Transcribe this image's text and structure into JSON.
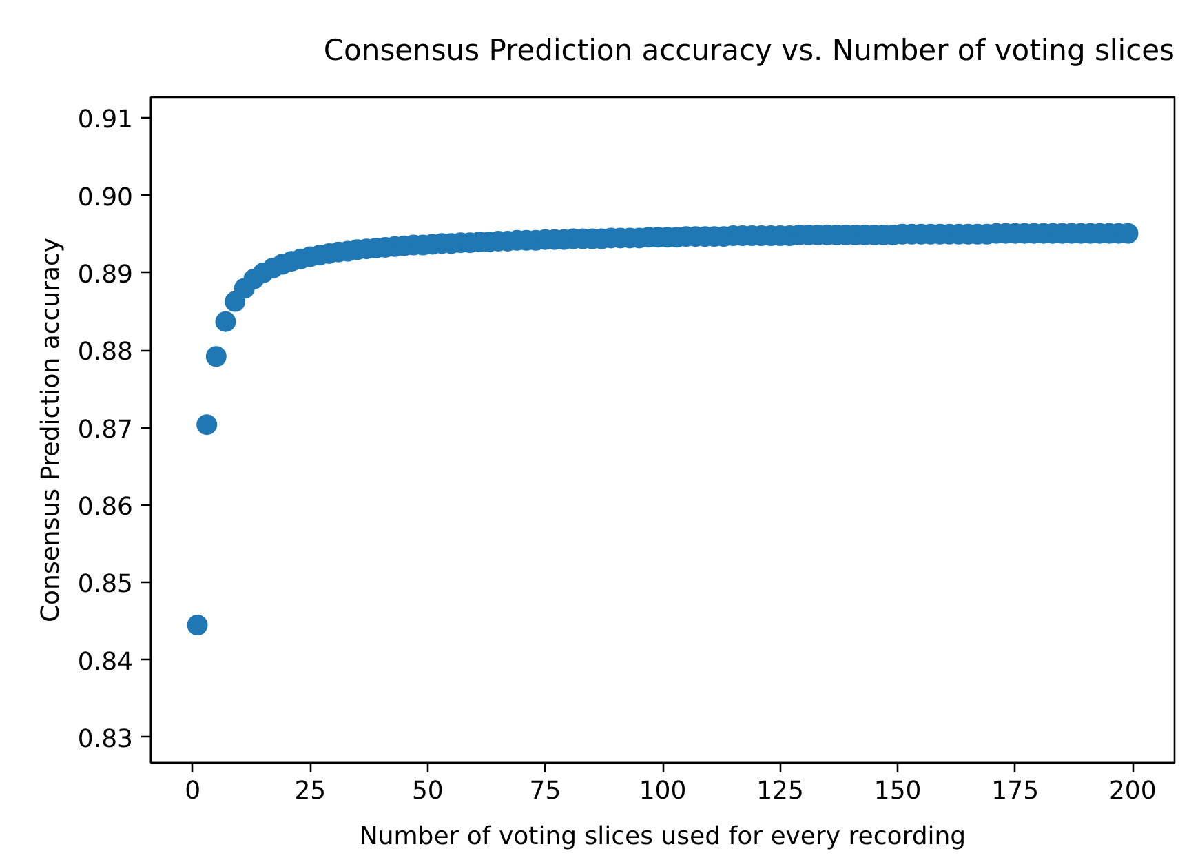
{
  "chart_data": {
    "type": "scatter",
    "title": "Consensus Prediction accuracy vs. Number of voting slices",
    "xlabel": "Number of voting slices used for every recording",
    "ylabel": "Consensus Prediction accuracy",
    "x": [
      1,
      3,
      5,
      7,
      9,
      11,
      13,
      15,
      17,
      19,
      21,
      23,
      25,
      27,
      29,
      31,
      33,
      35,
      37,
      39,
      41,
      43,
      45,
      47,
      49,
      51,
      53,
      55,
      57,
      59,
      61,
      63,
      65,
      67,
      69,
      71,
      73,
      75,
      77,
      79,
      81,
      83,
      85,
      87,
      89,
      91,
      93,
      95,
      97,
      99,
      101,
      103,
      105,
      107,
      109,
      111,
      113,
      115,
      117,
      119,
      121,
      123,
      125,
      127,
      129,
      131,
      133,
      135,
      137,
      139,
      141,
      143,
      145,
      147,
      149,
      151,
      153,
      155,
      157,
      159,
      161,
      163,
      165,
      167,
      169,
      171,
      173,
      175,
      177,
      179,
      181,
      183,
      185,
      187,
      189,
      191,
      193,
      195,
      197,
      199
    ],
    "series": [
      {
        "color": "#1f77b4",
        "values": [
          0.8445,
          0.8704,
          0.8792,
          0.8837,
          0.8863,
          0.888,
          0.8892,
          0.89,
          0.8906,
          0.8911,
          0.8915,
          0.8918,
          0.8921,
          0.8923,
          0.8925,
          0.8927,
          0.8928,
          0.893,
          0.8931,
          0.8932,
          0.8933,
          0.8934,
          0.8935,
          0.8936,
          0.8936,
          0.8937,
          0.8938,
          0.8938,
          0.8939,
          0.8939,
          0.894,
          0.894,
          0.8941,
          0.8941,
          0.8942,
          0.8942,
          0.8942,
          0.8943,
          0.8943,
          0.8943,
          0.8944,
          0.8944,
          0.8944,
          0.8944,
          0.8945,
          0.8945,
          0.8945,
          0.8945,
          0.8946,
          0.8946,
          0.8946,
          0.8946,
          0.8947,
          0.8947,
          0.8947,
          0.8947,
          0.8947,
          0.8948,
          0.8948,
          0.8948,
          0.8948,
          0.8948,
          0.8948,
          0.8948,
          0.8949,
          0.8949,
          0.8949,
          0.8949,
          0.8949,
          0.8949,
          0.8949,
          0.8949,
          0.8949,
          0.8949,
          0.8949,
          0.895,
          0.895,
          0.895,
          0.895,
          0.895,
          0.895,
          0.895,
          0.895,
          0.895,
          0.895,
          0.8951,
          0.8951,
          0.8951,
          0.8951,
          0.8951,
          0.8951,
          0.8951,
          0.8951,
          0.8951,
          0.8951,
          0.8951,
          0.8951,
          0.8951,
          0.8951,
          0.8951
        ]
      }
    ],
    "xlim": [
      -8.9,
      208.9
    ],
    "ylim": [
      0.8267,
      0.9127
    ],
    "xticks": [
      0,
      25,
      50,
      75,
      100,
      125,
      150,
      175,
      200
    ],
    "yticks": [
      0.83,
      0.84,
      0.85,
      0.86,
      0.87,
      0.88,
      0.89,
      {
        "value": 0.9,
        "label": "0.90"
      },
      0.91
    ],
    "grid": false,
    "marker": "circle"
  }
}
